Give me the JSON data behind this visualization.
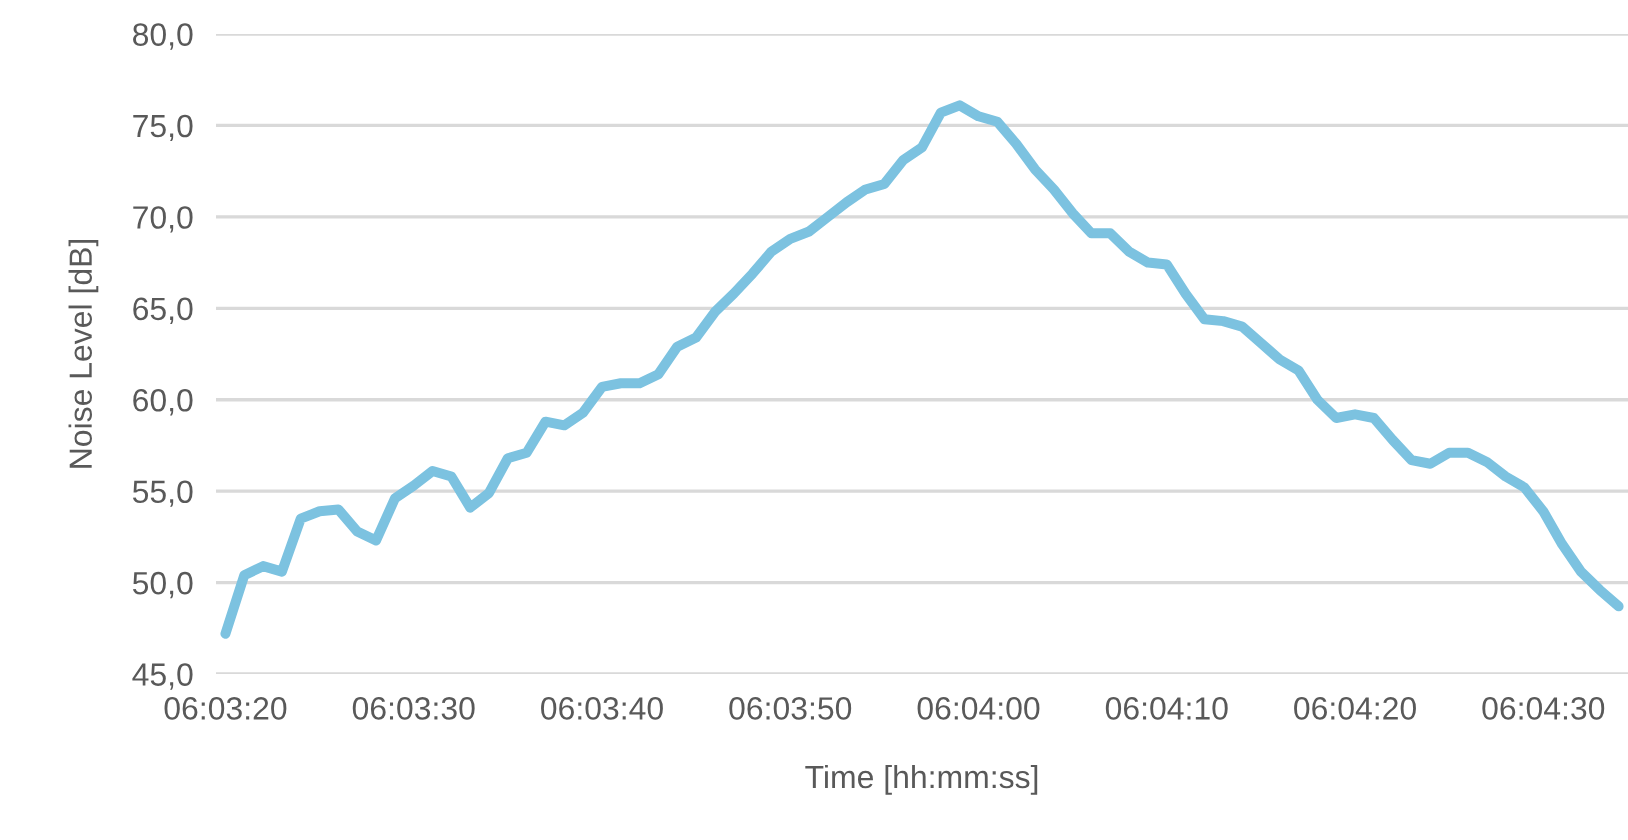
{
  "chart_data": {
    "type": "line",
    "xlabel": "Time [hh:mm:ss]",
    "ylabel": "Noise Level [dB]",
    "categories": [
      "06:03:20",
      null,
      null,
      null,
      null,
      null,
      null,
      null,
      null,
      null,
      "06:03:30",
      null,
      null,
      null,
      null,
      null,
      null,
      null,
      null,
      null,
      "06:03:40",
      null,
      null,
      null,
      null,
      null,
      null,
      null,
      null,
      null,
      "06:03:50",
      null,
      null,
      null,
      null,
      null,
      null,
      null,
      null,
      null,
      "06:04:00",
      null,
      null,
      null,
      null,
      null,
      null,
      null,
      null,
      null,
      "06:04:10",
      null,
      null,
      null,
      null,
      null,
      null,
      null,
      null,
      null,
      "06:04:20",
      null,
      null,
      null,
      null,
      null,
      null,
      null,
      null,
      null,
      "06:04:30",
      null,
      null,
      null,
      null
    ],
    "series": [
      {
        "color": "#7cc2e0",
        "values": [
          47.2,
          50.4,
          50.9,
          50.6,
          53.5,
          53.9,
          54.0,
          52.8,
          52.3,
          54.6,
          55.3,
          56.1,
          55.8,
          54.1,
          54.9,
          56.8,
          57.1,
          58.8,
          58.6,
          59.3,
          60.7,
          60.9,
          60.9,
          61.4,
          62.9,
          63.4,
          64.8,
          65.8,
          66.9,
          68.1,
          68.8,
          69.2,
          70.0,
          70.8,
          71.5,
          71.8,
          73.1,
          73.8,
          75.7,
          76.1,
          75.5,
          75.2,
          74.0,
          72.6,
          71.5,
          70.2,
          69.1,
          69.1,
          68.1,
          67.5,
          67.4,
          65.8,
          64.4,
          64.3,
          64.0,
          63.1,
          62.2,
          61.6,
          60.0,
          59.0,
          59.2,
          59.0,
          57.8,
          56.7,
          56.5,
          57.1,
          57.1,
          56.6,
          55.8,
          55.2,
          53.9,
          52.1,
          50.6,
          49.6,
          48.7
        ]
      }
    ],
    "ylim": [
      45,
      80
    ],
    "yticks": [
      {
        "value": 45,
        "label": "45,0"
      },
      {
        "value": 50,
        "label": "50,0"
      },
      {
        "value": 55,
        "label": "55,0"
      },
      {
        "value": 60,
        "label": "60,0"
      },
      {
        "value": 65,
        "label": "65,0"
      },
      {
        "value": 70,
        "label": "70,0"
      },
      {
        "value": 75,
        "label": "75,0"
      },
      {
        "value": 80,
        "label": "80,0"
      }
    ],
    "grid": "y",
    "marker": "none",
    "line_style": "solid"
  }
}
